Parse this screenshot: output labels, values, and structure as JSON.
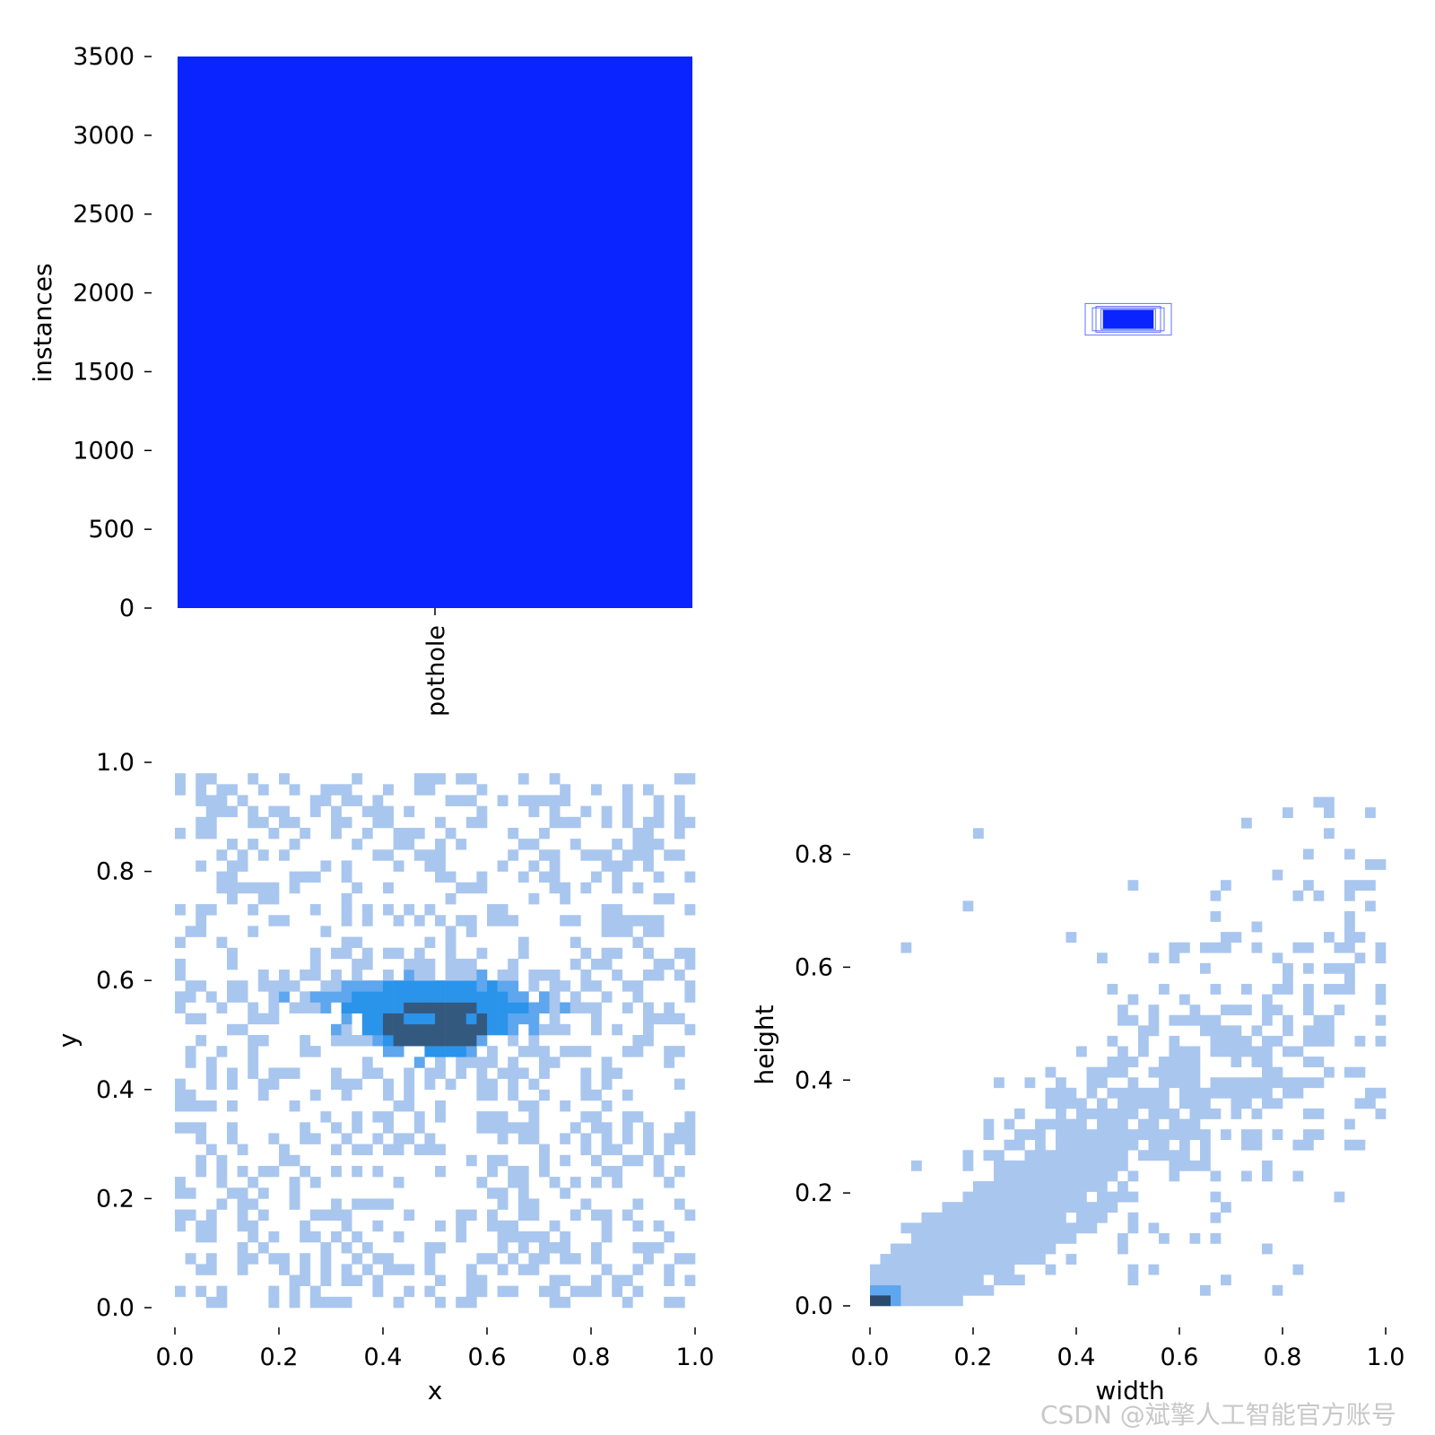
{
  "watermark": "CSDN @斌擎人工智能官方账号",
  "colors": {
    "bar": "#0a24ff",
    "box_stroke": "#1f3cff",
    "hist_light": "#a9c6ee",
    "hist_mid": "#5ea6ee",
    "hist_bright": "#2a93ea",
    "hist_dark": "#34597f",
    "hist_darkest": "#2b4a6e"
  },
  "chart_data": [
    {
      "type": "bar",
      "categories": [
        "pothole"
      ],
      "values": [
        3510
      ],
      "xlabel": "",
      "ylabel": "instances",
      "ylim": [
        0,
        3500
      ],
      "yticks": [
        "0",
        "500",
        "1000",
        "1500",
        "2000",
        "2500",
        "3000",
        "3500"
      ]
    },
    {
      "type": "boxes",
      "description_visible": "overlaid normalized bounding boxes centered in an empty panel",
      "boxes": [
        {
          "w": 0.06,
          "h": 0.022
        },
        {
          "w": 0.05,
          "h": 0.016
        },
        {
          "w": 0.045,
          "h": 0.018
        },
        {
          "w": 0.038,
          "h": 0.014
        },
        {
          "w": 0.035,
          "h": 0.013
        },
        {
          "w": 0.03,
          "h": 0.012
        }
      ]
    },
    {
      "type": "heatmap",
      "xlabel": "x",
      "ylabel": "y",
      "xlim": [
        0,
        1
      ],
      "ylim": [
        0,
        1
      ],
      "xticks": [
        "0.0",
        "0.2",
        "0.4",
        "0.6",
        "0.8",
        "1.0"
      ],
      "yticks": [
        "0.0",
        "0.2",
        "0.4",
        "0.6",
        "0.8",
        "1.0"
      ],
      "bins": 50,
      "density_center": {
        "x": 0.5,
        "y": 0.52
      },
      "band_y": [
        0.45,
        0.63
      ]
    },
    {
      "type": "heatmap",
      "xlabel": "width",
      "ylabel": "height",
      "xlim": [
        0,
        1
      ],
      "ylim": [
        0,
        0.92
      ],
      "xticks": [
        "0.0",
        "0.2",
        "0.4",
        "0.6",
        "0.8",
        "1.0"
      ],
      "yticks": [
        "0.0",
        "0.2",
        "0.4",
        "0.6",
        "0.8"
      ],
      "bins": 50,
      "peak": {
        "x": 0.02,
        "y": 0.01
      },
      "trend": "height roughly proportional to width"
    }
  ]
}
